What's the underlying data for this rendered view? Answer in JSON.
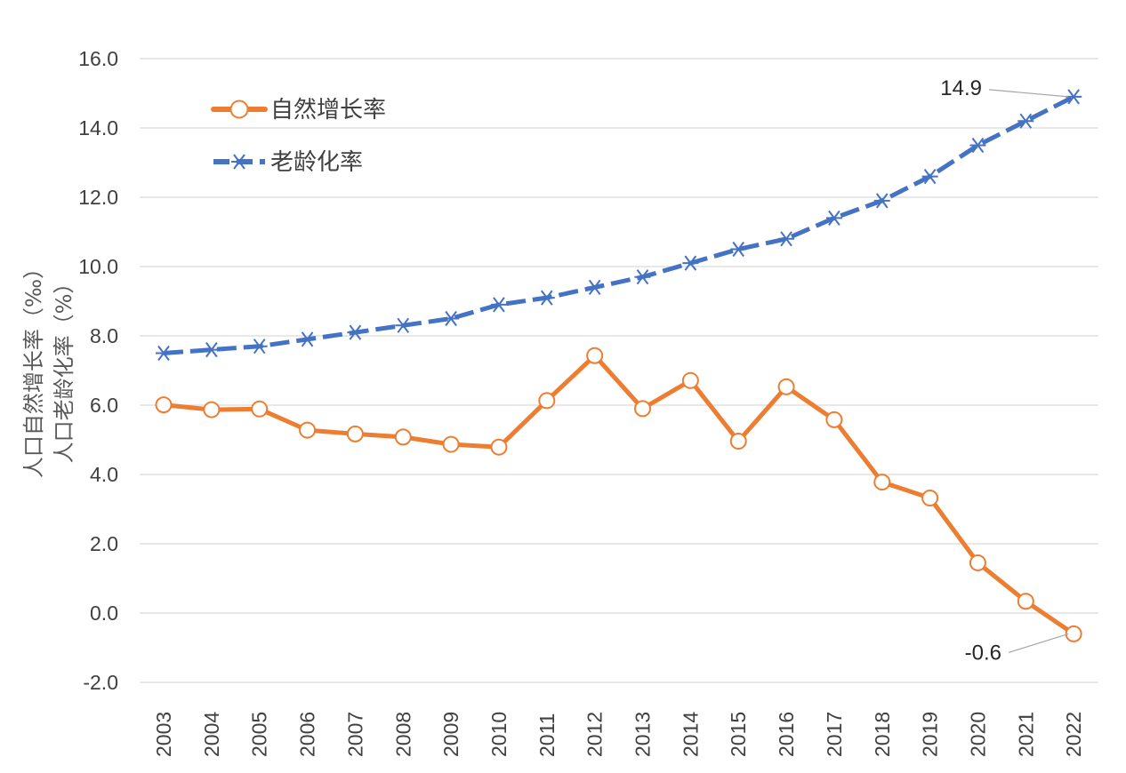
{
  "chart_data": {
    "type": "line",
    "title": "",
    "xlabel": "",
    "ylabel_lines": [
      "人口自然增长率（‰）",
      "人口老龄化率（%）"
    ],
    "ylim": [
      -2.0,
      16.0
    ],
    "yticks": [
      "16.0",
      "14.0",
      "12.0",
      "10.0",
      "8.0",
      "6.0",
      "4.0",
      "2.0",
      "0.0",
      "-2.0"
    ],
    "ytick_values": [
      16,
      14,
      12,
      10,
      8,
      6,
      4,
      2,
      0,
      -2
    ],
    "grid": "horizontal",
    "legend_position": "top-left",
    "categories": [
      "2003",
      "2004",
      "2005",
      "2006",
      "2007",
      "2008",
      "2009",
      "2010",
      "2011",
      "2012",
      "2013",
      "2014",
      "2015",
      "2016",
      "2017",
      "2018",
      "2019",
      "2020",
      "2021",
      "2022"
    ],
    "series": [
      {
        "name": "自然增长率",
        "color": "#ed7d31",
        "line_style": "solid",
        "marker": "circle-open",
        "values": [
          6.01,
          5.87,
          5.89,
          5.28,
          5.17,
          5.08,
          4.87,
          4.79,
          6.13,
          7.43,
          5.9,
          6.71,
          4.96,
          6.53,
          5.58,
          3.78,
          3.32,
          1.45,
          0.34,
          -0.6
        ]
      },
      {
        "name": "老龄化率",
        "color": "#4472c4",
        "line_style": "dashed",
        "marker": "asterisk",
        "values": [
          7.5,
          7.6,
          7.7,
          7.9,
          8.1,
          8.3,
          8.5,
          8.9,
          9.1,
          9.4,
          9.7,
          10.1,
          10.5,
          10.8,
          11.4,
          11.9,
          12.6,
          13.5,
          14.2,
          14.9
        ]
      }
    ],
    "annotations": [
      {
        "text": "14.9",
        "series": 1,
        "category": "2022"
      },
      {
        "text": "-0.6",
        "series": 0,
        "category": "2022"
      }
    ]
  }
}
